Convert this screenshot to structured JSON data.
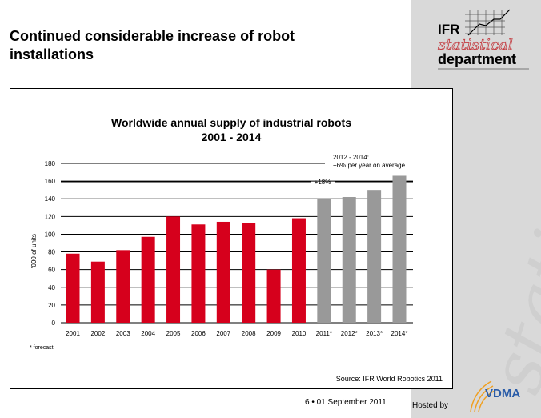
{
  "slide": {
    "title": "Continued considerable increase of robot installations",
    "footer": "6 •  01 September 2011",
    "hosted_by": "Hosted by",
    "logo_text": [
      "IFR",
      "statistical",
      "department"
    ],
    "watermark": "statistical",
    "vdma_logo": "VDMA"
  },
  "chart_data": {
    "type": "bar",
    "title": "Worldwide annual supply of industrial robots",
    "subtitle": "2001 - 2014",
    "ylabel": "'000 of units",
    "xlabel": "",
    "ylim": [
      0,
      180
    ],
    "yticks": [
      0,
      20,
      40,
      60,
      80,
      100,
      120,
      140,
      160,
      180
    ],
    "grid": true,
    "categories": [
      "2001",
      "2002",
      "2003",
      "2004",
      "2005",
      "2006",
      "2007",
      "2008",
      "2009",
      "2010",
      "2011*",
      "2012*",
      "2013*",
      "2014*"
    ],
    "values": [
      78,
      69,
      82,
      97,
      120,
      111,
      114,
      113,
      60,
      118,
      140,
      142,
      150,
      166
    ],
    "forecast": [
      false,
      false,
      false,
      false,
      false,
      false,
      false,
      false,
      false,
      false,
      true,
      true,
      true,
      true
    ],
    "colors": {
      "actual": "#d6001c",
      "forecast": "#999999"
    },
    "annotations": {
      "growth_2011": "+18%",
      "avg_line1": "2012 - 2014:",
      "avg_line2": "+6% per year on average"
    },
    "footnote": "* forecast",
    "source": "Source: IFR World Robotics 2011"
  }
}
